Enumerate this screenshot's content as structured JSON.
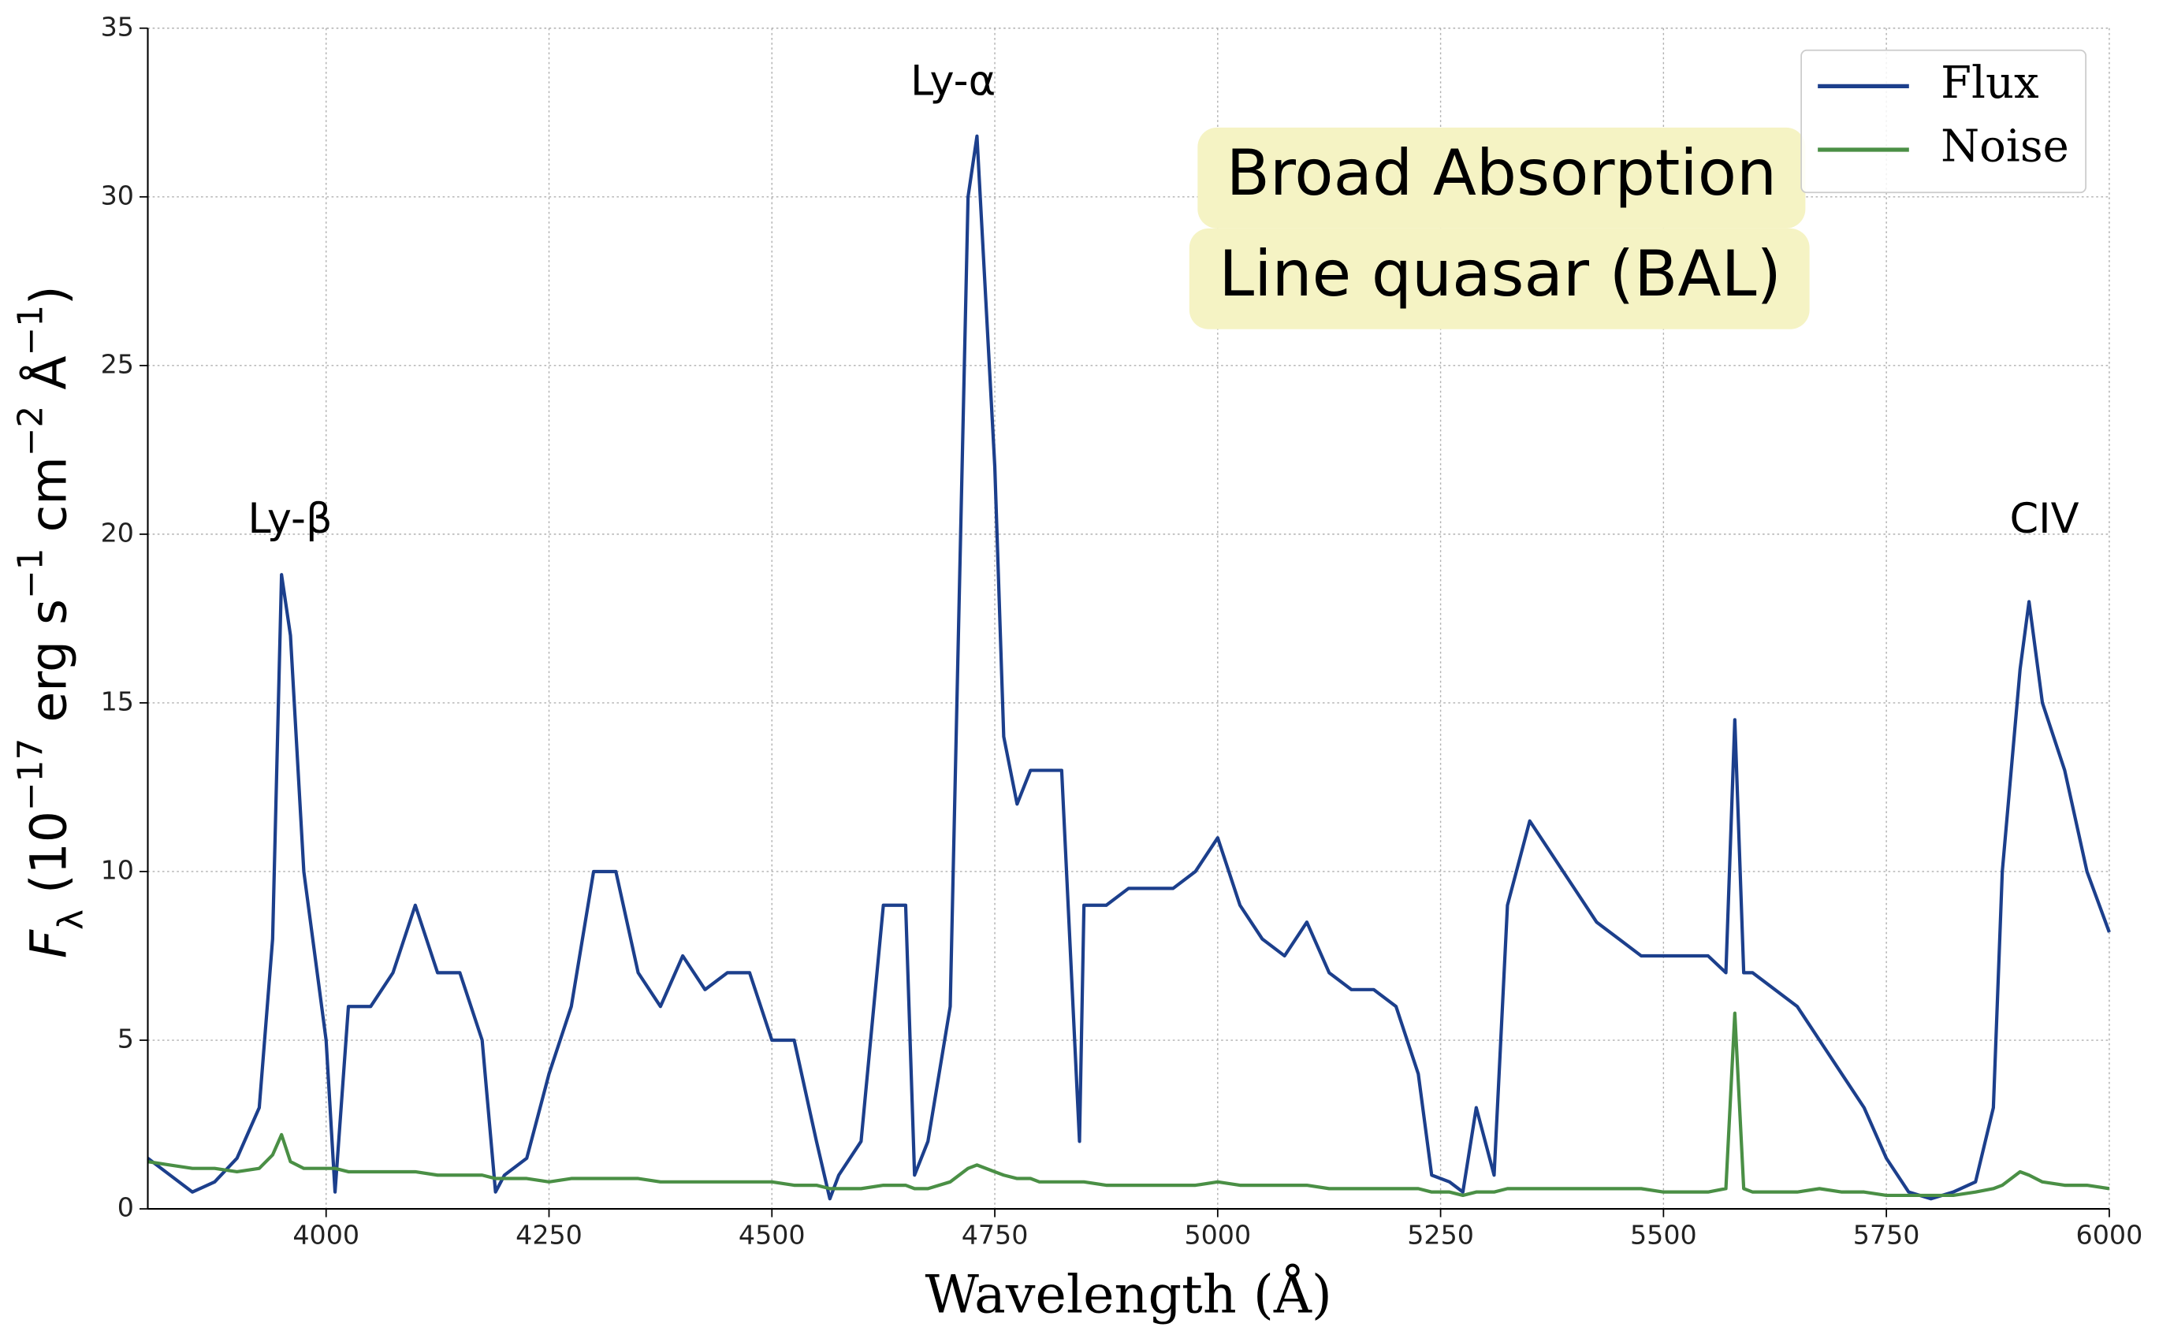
{
  "chart_data": {
    "type": "line",
    "xlabel": "Wavelength (Å)",
    "ylabel": [
      "F",
      "λ",
      " (10",
      "−17",
      " erg s",
      "−1",
      " cm",
      "−2",
      " Å",
      "−1",
      ")"
    ],
    "annotations": [
      "Ly-β",
      "Ly-α",
      "CIV"
    ],
    "textbox": [
      "Broad Absorption",
      "Line quasar (BAL)"
    ],
    "x": [
      3800,
      3825,
      3850,
      3875,
      3900,
      3925,
      3940,
      3950,
      3960,
      3975,
      4000,
      4010,
      4025,
      4050,
      4075,
      4100,
      4125,
      4150,
      4175,
      4190,
      4200,
      4225,
      4250,
      4275,
      4300,
      4325,
      4350,
      4375,
      4400,
      4425,
      4450,
      4475,
      4500,
      4525,
      4550,
      4565,
      4575,
      4600,
      4625,
      4650,
      4660,
      4675,
      4700,
      4720,
      4730,
      4750,
      4760,
      4775,
      4790,
      4800,
      4825,
      4845,
      4850,
      4875,
      4900,
      4925,
      4950,
      4975,
      5000,
      5025,
      5050,
      5075,
      5100,
      5125,
      5150,
      5175,
      5200,
      5225,
      5240,
      5260,
      5275,
      5290,
      5310,
      5325,
      5350,
      5375,
      5400,
      5425,
      5450,
      5475,
      5500,
      5525,
      5550,
      5570,
      5580,
      5590,
      5600,
      5625,
      5650,
      5675,
      5700,
      5725,
      5750,
      5775,
      5800,
      5825,
      5850,
      5870,
      5880,
      5900,
      5910,
      5925,
      5950,
      5975,
      6000
    ],
    "series": [
      {
        "name": "Flux",
        "color": "#1c3f8c",
        "values": [
          1.5,
          1.0,
          0.5,
          0.8,
          1.5,
          3,
          8,
          18.8,
          17,
          10,
          5,
          0.5,
          6,
          6,
          7,
          9,
          7,
          7,
          5,
          0.5,
          1,
          1.5,
          4,
          6,
          10,
          10,
          7,
          6,
          7.5,
          6.5,
          7,
          7,
          5,
          5,
          2,
          0.3,
          1,
          2,
          9,
          9,
          1,
          2,
          6,
          30,
          31.8,
          22,
          14,
          12,
          13,
          13,
          13,
          2,
          9,
          9,
          9.5,
          9.5,
          9.5,
          10,
          11,
          9,
          8,
          7.5,
          8.5,
          7,
          6.5,
          6.5,
          6,
          4,
          1,
          0.8,
          0.5,
          3,
          1,
          9,
          11.5,
          10.5,
          9.5,
          8.5,
          8,
          7.5,
          7.5,
          7.5,
          7.5,
          7,
          14.5,
          7,
          7,
          6.5,
          6,
          5,
          4,
          3,
          1.5,
          0.5,
          0.3,
          0.5,
          0.8,
          3,
          10,
          16,
          18,
          15,
          13,
          10,
          8.2
        ]
      },
      {
        "name": "Noise",
        "color": "#4a8f45",
        "values": [
          1.4,
          1.3,
          1.2,
          1.2,
          1.1,
          1.2,
          1.6,
          2.2,
          1.4,
          1.2,
          1.2,
          1.2,
          1.1,
          1.1,
          1.1,
          1.1,
          1.0,
          1.0,
          1.0,
          0.9,
          0.9,
          0.9,
          0.8,
          0.9,
          0.9,
          0.9,
          0.9,
          0.8,
          0.8,
          0.8,
          0.8,
          0.8,
          0.8,
          0.7,
          0.7,
          0.6,
          0.6,
          0.6,
          0.7,
          0.7,
          0.6,
          0.6,
          0.8,
          1.2,
          1.3,
          1.1,
          1.0,
          0.9,
          0.9,
          0.8,
          0.8,
          0.8,
          0.8,
          0.7,
          0.7,
          0.7,
          0.7,
          0.7,
          0.8,
          0.7,
          0.7,
          0.7,
          0.7,
          0.6,
          0.6,
          0.6,
          0.6,
          0.6,
          0.5,
          0.5,
          0.4,
          0.5,
          0.5,
          0.6,
          0.6,
          0.6,
          0.6,
          0.6,
          0.6,
          0.6,
          0.5,
          0.5,
          0.5,
          0.6,
          5.8,
          0.6,
          0.5,
          0.5,
          0.5,
          0.6,
          0.5,
          0.5,
          0.4,
          0.4,
          0.4,
          0.4,
          0.5,
          0.6,
          0.7,
          1.1,
          1.0,
          0.8,
          0.7,
          0.7,
          0.6
        ]
      }
    ],
    "xlim": [
      3800,
      6000
    ],
    "ylim": [
      0,
      35
    ],
    "xticks": [
      4000,
      4250,
      4500,
      4750,
      5000,
      5250,
      5500,
      5750,
      6000
    ],
    "yticks": [
      0,
      5,
      10,
      15,
      20,
      25,
      30,
      35
    ],
    "grid": true,
    "legend": "upper right"
  }
}
